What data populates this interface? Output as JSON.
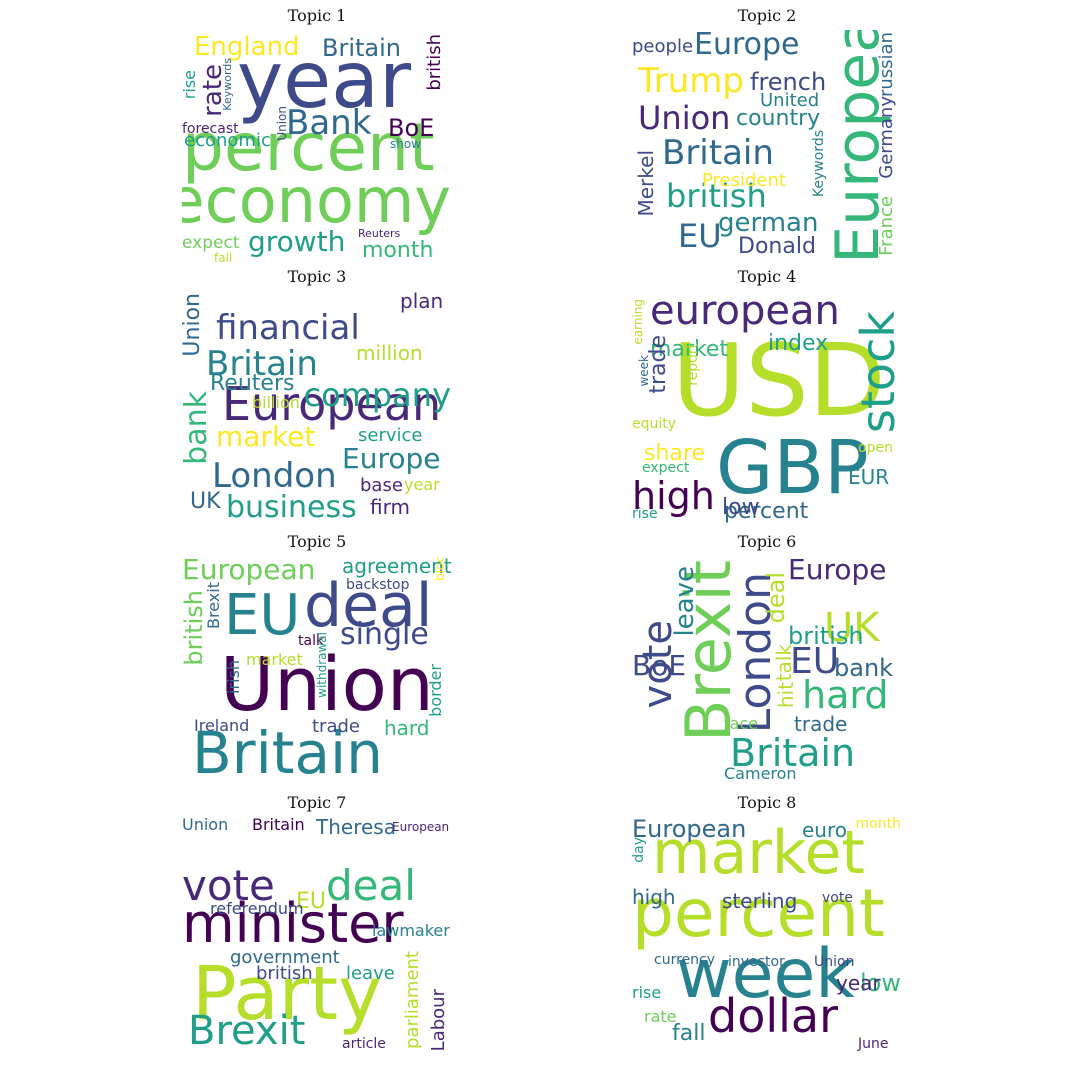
{
  "colors": [
    "#440154",
    "#482878",
    "#3e4a89",
    "#31688e",
    "#26828e",
    "#1f9e89",
    "#35b779",
    "#6ece58",
    "#b5de2b",
    "#fde725"
  ],
  "panels": [
    {
      "title": "Topic 1",
      "words": [
        {
          "text": "year",
          "c": 2
        },
        {
          "text": "percent",
          "c": 7
        },
        {
          "text": "economy",
          "c": 7
        },
        {
          "text": "Bank",
          "c": 3
        },
        {
          "text": "growth",
          "c": 5
        },
        {
          "text": "England",
          "c": 9
        },
        {
          "text": "Britain",
          "c": 3
        },
        {
          "text": "month",
          "c": 6
        },
        {
          "text": "rate",
          "c": 1
        },
        {
          "text": "BoE",
          "c": 0
        },
        {
          "text": "british",
          "c": 0
        },
        {
          "text": "economic",
          "c": 5
        },
        {
          "text": "expect",
          "c": 7
        },
        {
          "text": "rise",
          "c": 5
        },
        {
          "text": "Keywords",
          "c": 3
        },
        {
          "text": "forecast",
          "c": 1
        },
        {
          "text": "Union",
          "c": 2
        },
        {
          "text": "show",
          "c": 4
        },
        {
          "text": "Reuters",
          "c": 1
        },
        {
          "text": "fall",
          "c": 8
        }
      ]
    },
    {
      "title": "Topic 2",
      "words": [
        {
          "text": "European",
          "c": 6
        },
        {
          "text": "Europe",
          "c": 3
        },
        {
          "text": "Trump",
          "c": 9
        },
        {
          "text": "Union",
          "c": 1
        },
        {
          "text": "Britain",
          "c": 3
        },
        {
          "text": "british",
          "c": 5
        },
        {
          "text": "EU",
          "c": 3
        },
        {
          "text": "german",
          "c": 4
        },
        {
          "text": "Donald",
          "c": 2
        },
        {
          "text": "country",
          "c": 4
        },
        {
          "text": "french",
          "c": 2
        },
        {
          "text": "people",
          "c": 2
        },
        {
          "text": "United",
          "c": 4
        },
        {
          "text": "Merkel",
          "c": 2
        },
        {
          "text": "President",
          "c": 9
        },
        {
          "text": "Keywords",
          "c": 4
        },
        {
          "text": "russian",
          "c": 3
        },
        {
          "text": "Germany",
          "c": 2
        },
        {
          "text": "France",
          "c": 7
        }
      ]
    },
    {
      "title": "Topic 3",
      "words": [
        {
          "text": "European",
          "c": 1
        },
        {
          "text": "financial",
          "c": 2
        },
        {
          "text": "Britain",
          "c": 4
        },
        {
          "text": "company",
          "c": 5
        },
        {
          "text": "London",
          "c": 3
        },
        {
          "text": "market",
          "c": 9
        },
        {
          "text": "business",
          "c": 5
        },
        {
          "text": "bank",
          "c": 6
        },
        {
          "text": "Europe",
          "c": 4
        },
        {
          "text": "Union",
          "c": 3
        },
        {
          "text": "million",
          "c": 8
        },
        {
          "text": "Reuters",
          "c": 4
        },
        {
          "text": "service",
          "c": 5
        },
        {
          "text": "plan",
          "c": 1
        },
        {
          "text": "firm",
          "c": 1
        },
        {
          "text": "UK",
          "c": 3
        },
        {
          "text": "base",
          "c": 1
        },
        {
          "text": "billion",
          "c": 8
        },
        {
          "text": "year",
          "c": 8
        }
      ]
    },
    {
      "title": "Topic 4",
      "words": [
        {
          "text": "USD",
          "c": 8
        },
        {
          "text": "GBP",
          "c": 4
        },
        {
          "text": "european",
          "c": 1
        },
        {
          "text": "stock",
          "c": 5
        },
        {
          "text": "high",
          "c": 0
        },
        {
          "text": "market",
          "c": 6
        },
        {
          "text": "index",
          "c": 5
        },
        {
          "text": "trade",
          "c": 2
        },
        {
          "text": "share",
          "c": 9
        },
        {
          "text": "percent",
          "c": 3
        },
        {
          "text": "low",
          "c": 2
        },
        {
          "text": "EUR",
          "c": 4
        },
        {
          "text": "report",
          "c": 8
        },
        {
          "text": "earning",
          "c": 8
        },
        {
          "text": "week",
          "c": 3
        },
        {
          "text": "equity",
          "c": 8
        },
        {
          "text": "expect",
          "c": 6
        },
        {
          "text": "open",
          "c": 8
        },
        {
          "text": "rise",
          "c": 5
        }
      ]
    },
    {
      "title": "Topic 5",
      "words": [
        {
          "text": "Union",
          "c": 0
        },
        {
          "text": "Britain",
          "c": 4
        },
        {
          "text": "deal",
          "c": 2
        },
        {
          "text": "EU",
          "c": 4
        },
        {
          "text": "European",
          "c": 7
        },
        {
          "text": "single",
          "c": 2
        },
        {
          "text": "british",
          "c": 7
        },
        {
          "text": "agreement",
          "c": 5
        },
        {
          "text": "Brexit",
          "c": 3
        },
        {
          "text": "hard",
          "c": 6
        },
        {
          "text": "trade",
          "c": 2
        },
        {
          "text": "border",
          "c": 5
        },
        {
          "text": "Ireland",
          "c": 2
        },
        {
          "text": "market",
          "c": 8
        },
        {
          "text": "irish",
          "c": 3
        },
        {
          "text": "backstop",
          "c": 2
        },
        {
          "text": "talk",
          "c": 0
        },
        {
          "text": "withdrawal",
          "c": 5
        },
        {
          "text": "bloc",
          "c": 9
        }
      ]
    },
    {
      "title": "Topic 6",
      "words": [
        {
          "text": "Brexit",
          "c": 7
        },
        {
          "text": "London",
          "c": 2
        },
        {
          "text": "Britain",
          "c": 5
        },
        {
          "text": "vote",
          "c": 2
        },
        {
          "text": "hard",
          "c": 6
        },
        {
          "text": "UK",
          "c": 8
        },
        {
          "text": "EU",
          "c": 2
        },
        {
          "text": "Europe",
          "c": 1
        },
        {
          "text": "leave",
          "c": 4
        },
        {
          "text": "BoE",
          "c": 2
        },
        {
          "text": "deal",
          "c": 8
        },
        {
          "text": "british",
          "c": 5
        },
        {
          "text": "bank",
          "c": 3
        },
        {
          "text": "talk",
          "c": 8
        },
        {
          "text": "hit",
          "c": 8
        },
        {
          "text": "trade",
          "c": 3
        },
        {
          "text": "face",
          "c": 7
        },
        {
          "text": "Cameron",
          "c": 4
        }
      ]
    },
    {
      "title": "Topic 7",
      "words": [
        {
          "text": "minister",
          "c": 0
        },
        {
          "text": "Party",
          "c": 8
        },
        {
          "text": "Brexit",
          "c": 5
        },
        {
          "text": "vote",
          "c": 1
        },
        {
          "text": "deal",
          "c": 6
        },
        {
          "text": "EU",
          "c": 8
        },
        {
          "text": "Theresa",
          "c": 3
        },
        {
          "text": "Union",
          "c": 3
        },
        {
          "text": "Britain",
          "c": 0
        },
        {
          "text": "European",
          "c": 1
        },
        {
          "text": "referendum",
          "c": 2
        },
        {
          "text": "lawmaker",
          "c": 4
        },
        {
          "text": "government",
          "c": 3
        },
        {
          "text": "british",
          "c": 2
        },
        {
          "text": "leave",
          "c": 5
        },
        {
          "text": "parliament",
          "c": 8
        },
        {
          "text": "Labour",
          "c": 1
        },
        {
          "text": "article",
          "c": 1
        }
      ]
    },
    {
      "title": "Topic 8",
      "words": [
        {
          "text": "market",
          "c": 8
        },
        {
          "text": "percent",
          "c": 8
        },
        {
          "text": "week",
          "c": 4
        },
        {
          "text": "dollar",
          "c": 0
        },
        {
          "text": "European",
          "c": 3
        },
        {
          "text": "high",
          "c": 3
        },
        {
          "text": "sterling",
          "c": 2
        },
        {
          "text": "euro",
          "c": 4
        },
        {
          "text": "low",
          "c": 6
        },
        {
          "text": "year",
          "c": 1
        },
        {
          "text": "fall",
          "c": 4
        },
        {
          "text": "rise",
          "c": 5
        },
        {
          "text": "rate",
          "c": 7
        },
        {
          "text": "day",
          "c": 5
        },
        {
          "text": "vote",
          "c": 2
        },
        {
          "text": "currency",
          "c": 3
        },
        {
          "text": "investor",
          "c": 3
        },
        {
          "text": "Union",
          "c": 2
        },
        {
          "text": "month",
          "c": 9
        },
        {
          "text": "June",
          "c": 1
        }
      ]
    }
  ]
}
